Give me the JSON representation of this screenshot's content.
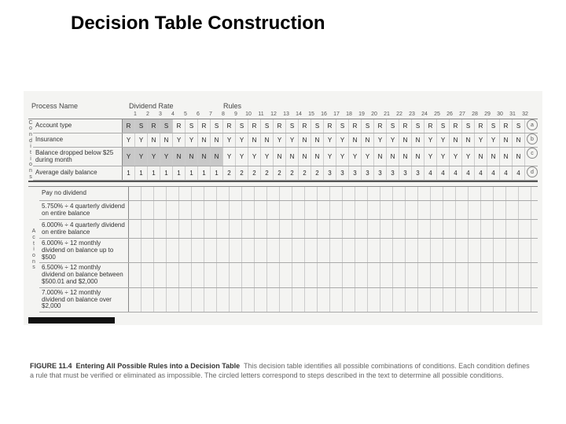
{
  "title": "Decision Table Construction",
  "table": {
    "header": {
      "process_name": "Process Name",
      "dividend_rate": "Dividend Rate",
      "rules": "Rules"
    },
    "rule_numbers": [
      "1",
      "2",
      "3",
      "4",
      "5",
      "6",
      "7",
      "8",
      "9",
      "10",
      "11",
      "12",
      "13",
      "14",
      "15",
      "16",
      "17",
      "18",
      "19",
      "20",
      "21",
      "22",
      "23",
      "24",
      "25",
      "26",
      "27",
      "28",
      "29",
      "30",
      "31",
      "32"
    ],
    "side_left_conditions": "C o n d i t i o n s",
    "side_left_actions": "A c t i o n s",
    "condition_rows": [
      {
        "label": "Account type",
        "letter": "a",
        "values": [
          "R",
          "S",
          "R",
          "S",
          "R",
          "S",
          "R",
          "S",
          "R",
          "S",
          "R",
          "S",
          "R",
          "S",
          "R",
          "S",
          "R",
          "S",
          "R",
          "S",
          "R",
          "S",
          "R",
          "S",
          "R",
          "S",
          "R",
          "S",
          "R",
          "S",
          "R",
          "S"
        ],
        "shade_count": 4
      },
      {
        "label": "Insurance",
        "letter": "b",
        "values": [
          "Y",
          "Y",
          "N",
          "N",
          "Y",
          "Y",
          "N",
          "N",
          "Y",
          "Y",
          "N",
          "N",
          "Y",
          "Y",
          "N",
          "N",
          "Y",
          "Y",
          "N",
          "N",
          "Y",
          "Y",
          "N",
          "N",
          "Y",
          "Y",
          "N",
          "N",
          "Y",
          "Y",
          "N",
          "N"
        ],
        "shade_count": 0
      },
      {
        "label": "Balance dropped below $25 during month",
        "letter": "c",
        "values": [
          "Y",
          "Y",
          "Y",
          "Y",
          "N",
          "N",
          "N",
          "N",
          "Y",
          "Y",
          "Y",
          "Y",
          "N",
          "N",
          "N",
          "N",
          "Y",
          "Y",
          "Y",
          "Y",
          "N",
          "N",
          "N",
          "N",
          "Y",
          "Y",
          "Y",
          "Y",
          "N",
          "N",
          "N",
          "N"
        ],
        "shade_count": 8,
        "tall": true
      },
      {
        "label": "Average daily balance",
        "letter": "d",
        "values": [
          "1",
          "1",
          "1",
          "1",
          "1",
          "1",
          "1",
          "1",
          "2",
          "2",
          "2",
          "2",
          "2",
          "2",
          "2",
          "2",
          "3",
          "3",
          "3",
          "3",
          "3",
          "3",
          "3",
          "3",
          "4",
          "4",
          "4",
          "4",
          "4",
          "4",
          "4",
          "4"
        ],
        "shade_count": 0
      }
    ],
    "action_rows": [
      {
        "label": "Pay no dividend"
      },
      {
        "label": "5.750% ÷ 4 quarterly dividend on entire balance",
        "tall": true
      },
      {
        "label": "6.000% ÷ 4 quarterly dividend on entire balance",
        "tall": true
      },
      {
        "label": "6.000% ÷ 12 monthly dividend on balance up to $500",
        "tall": true
      },
      {
        "label": "6.500% ÷ 12 monthly dividend on balance between $500.01 and $2,000",
        "tall": true
      },
      {
        "label": "7.000% ÷ 12 monthly dividend on balance over $2,000",
        "tall": true
      }
    ]
  },
  "caption": {
    "figure": "FIGURE 11.4",
    "title": "Entering All Possible Rules into a Decision Table",
    "body": "This decision table identifies all possible combinations of conditions. Each condition defines a rule that must be verified or eliminated as impossible. The circled letters correspond to steps described in the text to determine all possible conditions."
  },
  "colors": {
    "background": "#ffffff",
    "table_bg": "#f4f4f2",
    "shade": "#c8c8c8",
    "border": "#aaaaaa",
    "text": "#333333"
  }
}
